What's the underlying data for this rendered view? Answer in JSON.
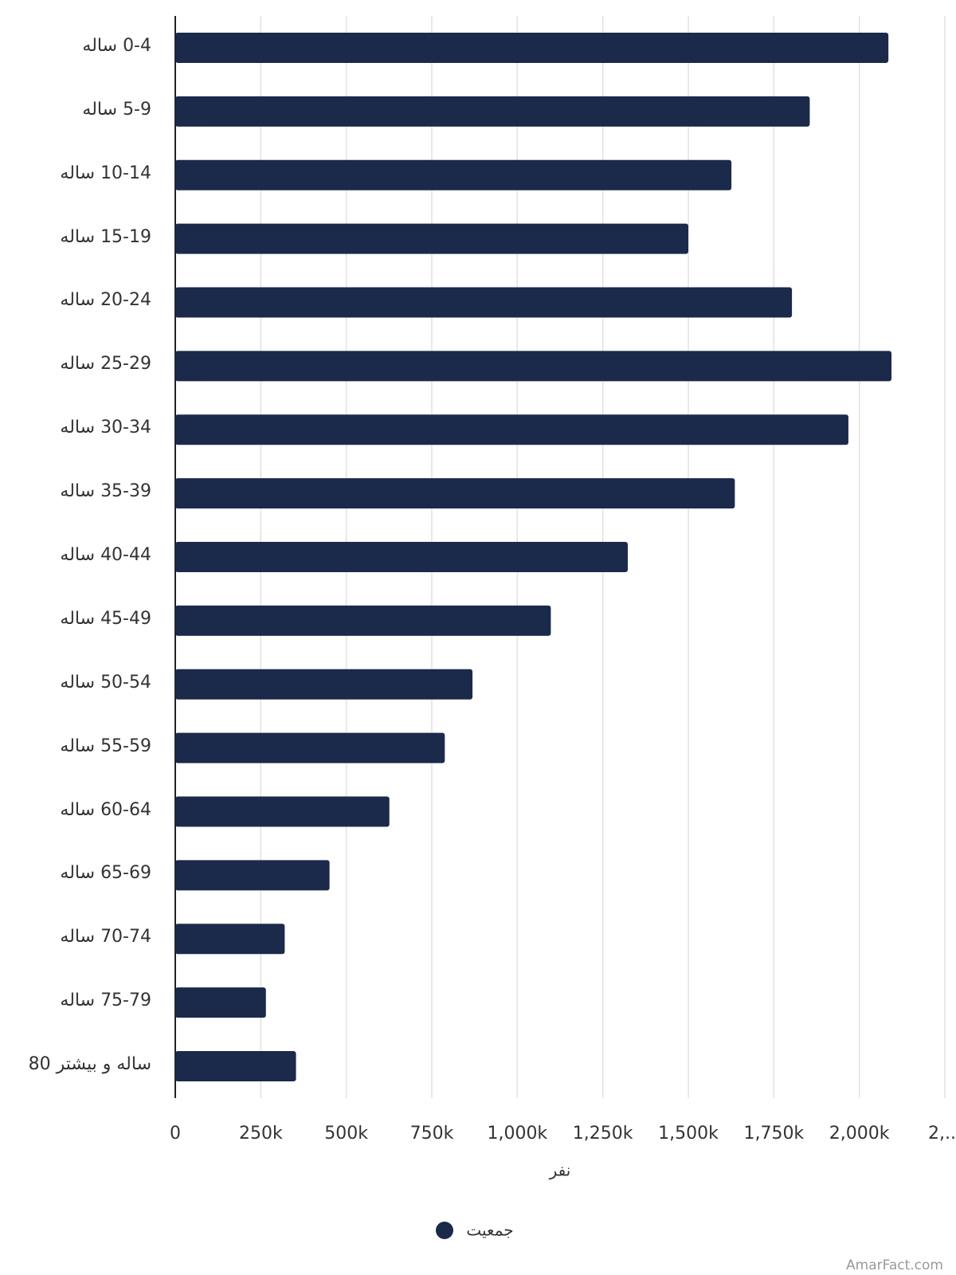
{
  "chart_data": {
    "type": "bar",
    "orientation": "horizontal",
    "categories": [
      "0-4 ساله",
      "5-9 ساله",
      "10-14 ساله",
      "15-19 ساله",
      "20-24 ساله",
      "25-29 ساله",
      "30-34 ساله",
      "35-39 ساله",
      "40-44 ساله",
      "45-49 ساله",
      "50-54 ساله",
      "55-59 ساله",
      "60-64 ساله",
      "65-69 ساله",
      "70-74 ساله",
      "75-79 ساله",
      "ساله و بیشتر 80"
    ],
    "series": [
      {
        "name": "جمعیت",
        "color": "#1b2a4a",
        "values": [
          2085000,
          1855000,
          1626000,
          1500000,
          1803000,
          2094000,
          1968000,
          1636000,
          1323000,
          1098000,
          869000,
          788000,
          626000,
          451000,
          320000,
          265000,
          353000
        ]
      }
    ],
    "xlabel": "نفر",
    "xlim": [
      0,
      2250000
    ],
    "xticks": [
      0,
      {
        "value": 250000,
        "label": "250k"
      },
      {
        "value": 500000,
        "label": "500k"
      },
      {
        "value": 750000,
        "label": "750k"
      },
      {
        "value": 1000000,
        "label": "1,000k"
      },
      {
        "value": 1250000,
        "label": "1,250k"
      },
      {
        "value": 1500000,
        "label": "1,500k"
      },
      {
        "value": 1750000,
        "label": "1,750k"
      },
      {
        "value": 2000000,
        "label": "2,000k"
      },
      {
        "value": 2250000,
        "label": "2,..."
      }
    ],
    "grid": true,
    "legend": "bottom",
    "watermark": "AmarFact.com"
  }
}
